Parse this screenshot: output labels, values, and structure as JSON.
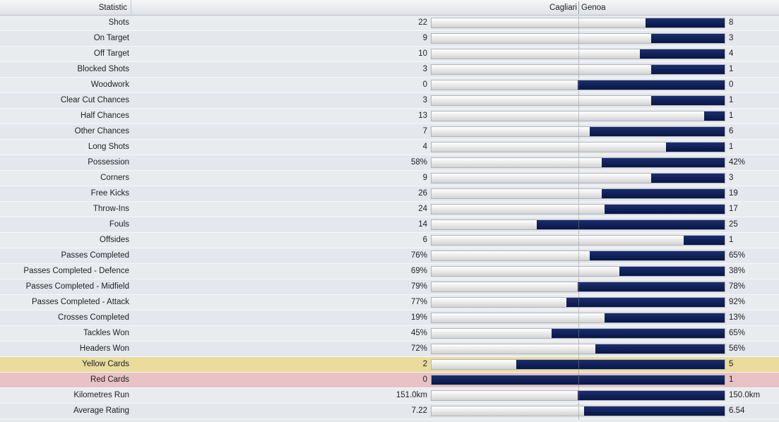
{
  "header": {
    "statistic": "Statistic",
    "home_team": "Cagliari",
    "away_team": "Genoa"
  },
  "colors": {
    "away_bar": "#0f1f55",
    "home_bar": "#e0e0e0",
    "yellow_row": "#e9dc9c",
    "red_row": "#e8c2c4"
  },
  "stats": [
    {
      "label": "Shots",
      "home": "22",
      "away": "8",
      "away_share": 0.27
    },
    {
      "label": "On Target",
      "home": "9",
      "away": "3",
      "away_share": 0.25
    },
    {
      "label": "Off Target",
      "home": "10",
      "away": "4",
      "away_share": 0.29
    },
    {
      "label": "Blocked Shots",
      "home": "3",
      "away": "1",
      "away_share": 0.25
    },
    {
      "label": "Woodwork",
      "home": "0",
      "away": "0",
      "away_share": 0.5
    },
    {
      "label": "Clear Cut Chances",
      "home": "3",
      "away": "1",
      "away_share": 0.25
    },
    {
      "label": "Half Chances",
      "home": "13",
      "away": "1",
      "away_share": 0.07
    },
    {
      "label": "Other Chances",
      "home": "7",
      "away": "6",
      "away_share": 0.46
    },
    {
      "label": "Long Shots",
      "home": "4",
      "away": "1",
      "away_share": 0.2
    },
    {
      "label": "Possession",
      "home": "58%",
      "away": "42%",
      "away_share": 0.42
    },
    {
      "label": "Corners",
      "home": "9",
      "away": "3",
      "away_share": 0.25
    },
    {
      "label": "Free Kicks",
      "home": "26",
      "away": "19",
      "away_share": 0.42
    },
    {
      "label": "Throw-Ins",
      "home": "24",
      "away": "17",
      "away_share": 0.41
    },
    {
      "label": "Fouls",
      "home": "14",
      "away": "25",
      "away_share": 0.64
    },
    {
      "label": "Offsides",
      "home": "6",
      "away": "1",
      "away_share": 0.14
    },
    {
      "label": "Passes Completed",
      "home": "76%",
      "away": "65%",
      "away_share": 0.46
    },
    {
      "label": "Passes Completed - Defence",
      "home": "69%",
      "away": "38%",
      "away_share": 0.36
    },
    {
      "label": "Passes Completed - Midfield",
      "home": "79%",
      "away": "78%",
      "away_share": 0.5
    },
    {
      "label": "Passes Completed - Attack",
      "home": "77%",
      "away": "92%",
      "away_share": 0.54
    },
    {
      "label": "Crosses Completed",
      "home": "19%",
      "away": "13%",
      "away_share": 0.41
    },
    {
      "label": "Tackles Won",
      "home": "45%",
      "away": "65%",
      "away_share": 0.59
    },
    {
      "label": "Headers Won",
      "home": "72%",
      "away": "56%",
      "away_share": 0.44
    },
    {
      "label": "Yellow Cards",
      "home": "2",
      "away": "5",
      "away_share": 0.71,
      "highlight": "yellow"
    },
    {
      "label": "Red Cards",
      "home": "0",
      "away": "1",
      "away_share": 1.0,
      "highlight": "red"
    },
    {
      "label": "Kilometres Run",
      "home": "151.0km",
      "away": "150.0km",
      "away_share": 0.5
    },
    {
      "label": "Average Rating",
      "home": "7.22",
      "away": "6.54",
      "away_share": 0.48
    }
  ]
}
